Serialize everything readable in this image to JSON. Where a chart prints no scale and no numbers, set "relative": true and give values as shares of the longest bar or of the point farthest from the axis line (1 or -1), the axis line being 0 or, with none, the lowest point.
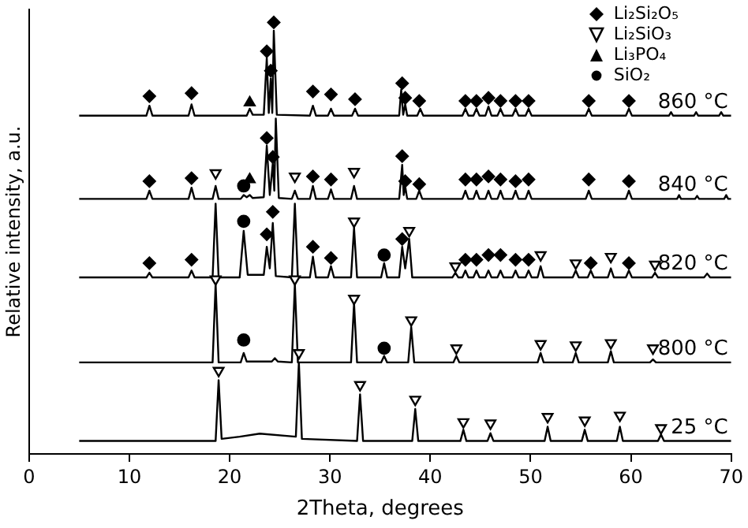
{
  "chart_data": {
    "type": "line",
    "relative": true,
    "xlabel": "2Theta, degrees",
    "ylabel": "Relative intensity, a.u.",
    "xlim": [
      0,
      70
    ],
    "xticks": [
      0,
      10,
      20,
      30,
      40,
      50,
      60,
      70
    ],
    "grid": false,
    "legend": "top right",
    "series": [
      {
        "name": "25 °C",
        "marker": "none",
        "color": "#000000",
        "x": [
          5,
          18.6,
          18.9,
          19.2,
          21,
          23,
          26.6,
          26.9,
          27.2,
          32.7,
          33,
          33.3,
          38.2,
          38.5,
          38.8,
          43,
          43.3,
          43.6,
          45.7,
          46,
          46.3,
          51.4,
          51.7,
          52,
          55.1,
          55.4,
          55.7,
          58.6,
          58.9,
          59.2,
          62.7,
          63,
          63.3,
          70
        ],
        "values": [
          0.03,
          0.03,
          0.171,
          0.035,
          0.04,
          0.047,
          0.04,
          0.212,
          0.035,
          0.03,
          0.138,
          0.03,
          0.03,
          0.104,
          0.03,
          0.03,
          0.056,
          0.03,
          0.03,
          0.048,
          0.03,
          0.03,
          0.063,
          0.03,
          0.03,
          0.056,
          0.03,
          0.03,
          0.063,
          0.03,
          0.03,
          0.045,
          0.03,
          0.03
        ]
      },
      {
        "name": "800 °C",
        "marker": "none",
        "color": "#000000",
        "x": [
          5,
          18.3,
          18.6,
          18.9,
          21.1,
          21.4,
          21.7,
          24.2,
          24.5,
          24.8,
          26.2,
          26.5,
          26.8,
          32.1,
          32.4,
          32.7,
          35.1,
          35.4,
          35.7,
          37.8,
          38.1,
          38.4,
          42.3,
          42.6,
          42.9,
          50.7,
          51,
          51.3,
          54.2,
          54.5,
          54.8,
          57.7,
          58,
          58.3,
          61.9,
          62.2,
          62.5,
          70
        ],
        "values": [
          0.212,
          0.212,
          0.394,
          0.212,
          0.212,
          0.234,
          0.214,
          0.214,
          0.222,
          0.214,
          0.212,
          0.394,
          0.212,
          0.212,
          0.349,
          0.212,
          0.212,
          0.227,
          0.212,
          0.212,
          0.294,
          0.212,
          0.212,
          0.227,
          0.212,
          0.212,
          0.234,
          0.212,
          0.212,
          0.234,
          0.212,
          0.212,
          0.238,
          0.212,
          0.212,
          0.219,
          0.212,
          0.212
        ]
      },
      {
        "name": "820 °C",
        "marker": "none",
        "color": "#000000",
        "x": [
          5,
          11.7,
          12,
          12.3,
          15.9,
          16.2,
          16.5,
          18.3,
          18.6,
          18.9,
          21,
          21.4,
          21.8,
          23.4,
          23.7,
          24,
          24.3,
          24.6,
          26.2,
          26.5,
          26.8,
          28,
          28.3,
          28.6,
          29.8,
          30.1,
          30.4,
          32.1,
          32.4,
          32.7,
          35.1,
          35.4,
          35.7,
          36.9,
          37.2,
          37.5,
          37.9,
          38.2,
          42.2,
          42.5,
          42.8,
          43.2,
          43.5,
          43.8,
          44.3,
          44.6,
          44.9,
          45.5,
          45.8,
          46.1,
          46.7,
          47,
          47.3,
          48.2,
          48.5,
          48.8,
          49.5,
          49.8,
          50.1,
          50.7,
          51,
          51.3,
          54.2,
          54.5,
          54.8,
          55.7,
          56,
          56.3,
          57.7,
          58,
          58.3,
          59.5,
          59.8,
          60.1,
          62.1,
          62.4,
          62.7,
          67.3,
          67.6,
          67.9,
          70
        ],
        "values": [
          0.409,
          0.409,
          0.42,
          0.409,
          0.409,
          0.425,
          0.409,
          0.409,
          0.58,
          0.409,
          0.409,
          0.517,
          0.415,
          0.415,
          0.48,
          0.43,
          0.535,
          0.412,
          0.409,
          0.58,
          0.409,
          0.409,
          0.457,
          0.409,
          0.409,
          0.435,
          0.409,
          0.409,
          0.524,
          0.409,
          0.409,
          0.442,
          0.409,
          0.409,
          0.48,
          0.43,
          0.498,
          0.409,
          0.409,
          0.42,
          0.409,
          0.409,
          0.425,
          0.409,
          0.409,
          0.425,
          0.409,
          0.409,
          0.425,
          0.409,
          0.409,
          0.425,
          0.409,
          0.409,
          0.425,
          0.409,
          0.409,
          0.425,
          0.409,
          0.409,
          0.435,
          0.409,
          0.409,
          0.425,
          0.409,
          0.409,
          0.425,
          0.409,
          0.409,
          0.43,
          0.409,
          0.409,
          0.425,
          0.409,
          0.409,
          0.42,
          0.409,
          0.409,
          0.418,
          0.409,
          0.409
        ]
      },
      {
        "name": "840 °C",
        "marker": "none",
        "color": "#000000",
        "x": [
          5,
          11.7,
          12,
          12.3,
          15.9,
          16.2,
          16.5,
          18.3,
          18.6,
          18.9,
          21.1,
          21.4,
          21.7,
          22,
          22.3,
          23.4,
          23.7,
          24,
          24.3,
          24.45,
          24.6,
          24.9,
          26.2,
          26.5,
          26.8,
          28,
          28.3,
          28.6,
          29.8,
          30.1,
          30.4,
          32.1,
          32.4,
          32.7,
          36.9,
          37.2,
          37.35,
          37.5,
          37.7,
          38.6,
          38.9,
          39.2,
          43.2,
          43.5,
          43.8,
          44.3,
          44.6,
          44.9,
          45.5,
          45.8,
          46.1,
          46.7,
          47,
          47.3,
          48.2,
          48.5,
          48.8,
          49.5,
          49.8,
          50.1,
          55.5,
          55.8,
          56.1,
          59.5,
          59.8,
          60.1,
          64.6,
          64.8,
          65,
          66.4,
          66.6,
          66.8,
          69.3,
          69.5,
          69.7,
          70
        ],
        "values": [
          0.591,
          0.591,
          0.61,
          0.591,
          0.591,
          0.617,
          0.591,
          0.591,
          0.621,
          0.591,
          0.591,
          0.6,
          0.595,
          0.6,
          0.593,
          0.595,
          0.714,
          0.6,
          0.673,
          0.61,
          0.777,
          0.593,
          0.591,
          0.61,
          0.591,
          0.591,
          0.621,
          0.591,
          0.591,
          0.613,
          0.591,
          0.591,
          0.621,
          0.591,
          0.591,
          0.67,
          0.6,
          0.62,
          0.591,
          0.591,
          0.61,
          0.591,
          0.591,
          0.61,
          0.591,
          0.591,
          0.61,
          0.591,
          0.591,
          0.61,
          0.591,
          0.591,
          0.61,
          0.591,
          0.591,
          0.61,
          0.591,
          0.591,
          0.61,
          0.591,
          0.591,
          0.61,
          0.591,
          0.591,
          0.61,
          0.591,
          0.591,
          0.6,
          0.591,
          0.591,
          0.598,
          0.591,
          0.591,
          0.6,
          0.591,
          0.591
        ]
      },
      {
        "name": "860 °C",
        "marker": "none",
        "color": "#000000",
        "x": [
          5,
          11.7,
          12,
          12.3,
          15.9,
          16.2,
          16.5,
          21.7,
          22,
          22.3,
          23.4,
          23.7,
          23.9,
          24.1,
          24.25,
          24.4,
          24.7,
          28,
          28.3,
          28.6,
          29.8,
          30.1,
          30.4,
          32.2,
          32.5,
          32.8,
          36.9,
          37.1,
          37.3,
          37.5,
          37.7,
          38.7,
          39,
          39.3,
          43.2,
          43.5,
          43.8,
          44.3,
          44.6,
          44.9,
          45.5,
          45.8,
          46.1,
          46.7,
          47,
          47.3,
          48.2,
          48.5,
          48.8,
          49.5,
          49.8,
          50.1,
          55.5,
          55.8,
          56.1,
          59.5,
          59.8,
          60.1,
          63.8,
          64,
          64.2,
          66.3,
          66.5,
          66.7,
          68.8,
          69,
          69.2,
          70
        ],
        "values": [
          0.784,
          0.784,
          0.807,
          0.784,
          0.784,
          0.81,
          0.784,
          0.784,
          0.8,
          0.786,
          0.786,
          0.918,
          0.79,
          0.87,
          0.79,
          0.981,
          0.786,
          0.784,
          0.807,
          0.784,
          0.784,
          0.8,
          0.784,
          0.784,
          0.8,
          0.784,
          0.784,
          0.844,
          0.786,
          0.81,
          0.784,
          0.784,
          0.8,
          0.784,
          0.784,
          0.8,
          0.784,
          0.784,
          0.8,
          0.784,
          0.784,
          0.805,
          0.784,
          0.784,
          0.8,
          0.784,
          0.784,
          0.8,
          0.784,
          0.784,
          0.8,
          0.784,
          0.784,
          0.8,
          0.784,
          0.784,
          0.8,
          0.784,
          0.784,
          0.792,
          0.784,
          0.784,
          0.792,
          0.784,
          0.784,
          0.792,
          0.784,
          0.784
        ]
      },
      {
        "name": "Li₂Si₂O₅",
        "type": "scatter",
        "marker": "diamond",
        "color": "#000000",
        "x": [
          12,
          16.2,
          23.7,
          24.1,
          24.4,
          28.3,
          30.1,
          32.5,
          37.2,
          37.5,
          38.9,
          43.5,
          44.6,
          45.8,
          47,
          48.5,
          49.8,
          55.8,
          59.8,
          12,
          16.2,
          23.7,
          24.3,
          28.3,
          30.1,
          37.2,
          37.5,
          38.9,
          43.5,
          44.6,
          45.8,
          47,
          48.5,
          49.8,
          55.8,
          59.8,
          12,
          16.2,
          23.7,
          24.3,
          28.3,
          30.1,
          37.2,
          43.5,
          44.6,
          45.8,
          47,
          48.5,
          49.8,
          56,
          59.8
        ],
        "values": [
          0.829,
          0.836,
          0.933,
          0.888,
          1,
          0.84,
          0.833,
          0.822,
          0.859,
          0.825,
          0.818,
          0.818,
          0.818,
          0.825,
          0.818,
          0.818,
          0.818,
          0.818,
          0.818,
          0.632,
          0.639,
          0.732,
          0.688,
          0.643,
          0.636,
          0.69,
          0.632,
          0.625,
          0.636,
          0.636,
          0.643,
          0.636,
          0.632,
          0.636,
          0.636,
          0.632,
          0.442,
          0.45,
          0.509,
          0.561,
          0.48,
          0.454,
          0.498,
          0.45,
          0.45,
          0.461,
          0.461,
          0.45,
          0.45,
          0.442,
          0.442
        ]
      },
      {
        "name": "Li₂SiO₃",
        "type": "scatter",
        "marker": "triangle-down",
        "color": "#000000",
        "x": [
          18.6,
          26.5,
          32.4,
          32.4,
          37.9,
          42.5,
          51,
          54.5,
          58,
          62.4,
          18.6,
          26.5,
          32.4,
          38.1,
          42.6,
          51,
          54.5,
          58,
          62.2,
          18.9,
          26.9,
          33,
          38.5,
          43.3,
          46,
          51.7,
          55.4,
          58.9,
          63
        ],
        "values": [
          0.651,
          0.643,
          0.654,
          0.539,
          0.517,
          0.435,
          0.461,
          0.442,
          0.457,
          0.439,
          0.405,
          0.405,
          0.36,
          0.31,
          0.245,
          0.255,
          0.252,
          0.257,
          0.245,
          0.193,
          0.234,
          0.16,
          0.126,
          0.074,
          0.071,
          0.086,
          0.078,
          0.089,
          0.06
        ]
      },
      {
        "name": "Li₃PO₄",
        "type": "scatter",
        "marker": "triangle",
        "color": "#000000",
        "x": [
          22,
          22
        ],
        "values": [
          0.814,
          0.636
        ]
      },
      {
        "name": "SiO₂",
        "type": "scatter",
        "marker": "circle",
        "color": "#000000",
        "x": [
          21.4,
          21.4,
          35.4,
          21.4,
          35.4
        ],
        "values": [
          0.621,
          0.539,
          0.461,
          0.264,
          0.245
        ]
      }
    ]
  }
}
